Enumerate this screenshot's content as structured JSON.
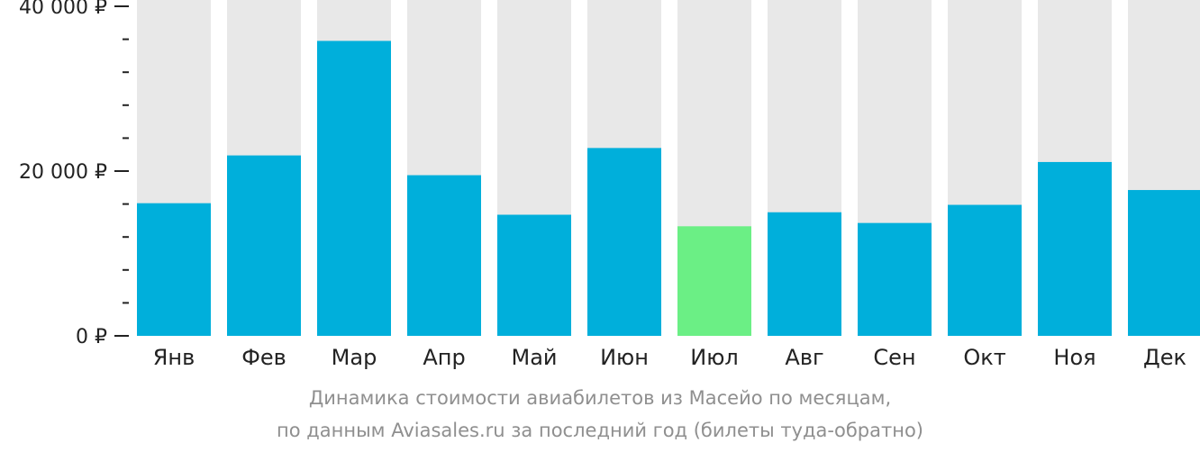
{
  "chart_data": {
    "type": "bar",
    "categories": [
      "Янв",
      "Фев",
      "Мар",
      "Апр",
      "Май",
      "Июн",
      "Июл",
      "Авг",
      "Сен",
      "Окт",
      "Ноя",
      "Дек"
    ],
    "values": [
      16100,
      21900,
      35800,
      19500,
      14700,
      22800,
      13300,
      15000,
      13700,
      15900,
      21100,
      17700
    ],
    "highlight_index": 6,
    "ylim": [
      0,
      40000
    ],
    "yticks": [
      0,
      20000,
      40000
    ],
    "ytick_labels": [
      "0 ₽",
      "20 000 ₽",
      "40 000 ₽"
    ],
    "minor_tick_step": 4000,
    "grid": false,
    "legend": "none",
    "colors": {
      "bar": "#00afdb",
      "highlight": "#6bef85",
      "bar_background": "#e8e8e8",
      "axis": "#222222"
    }
  },
  "caption": {
    "line1": "Динамика стоимости авиабилетов из Масейо по месяцам,",
    "line2": "по данным Aviasales.ru за последний год (билеты туда-обратно)"
  }
}
